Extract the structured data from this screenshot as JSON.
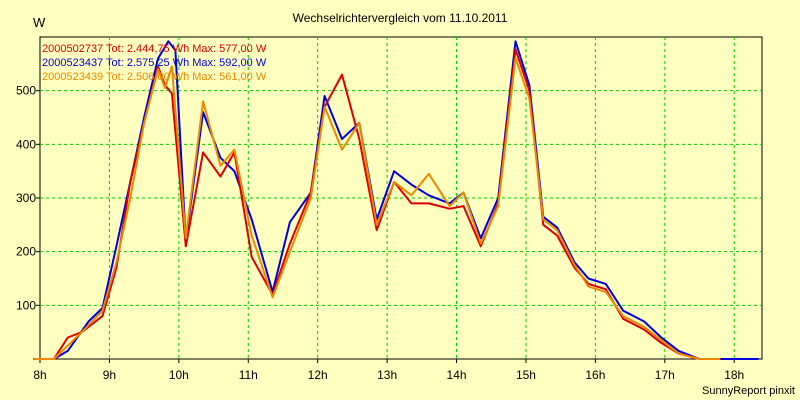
{
  "chart_data": {
    "type": "line",
    "title": "Wechselrichtervergleich vom 11.10.2011",
    "ylabel": "W",
    "xlabel": "",
    "xlim": [
      8,
      18.4
    ],
    "ylim": [
      0,
      600
    ],
    "grid": true,
    "legend_position": "top-left",
    "x_ticks": [
      {
        "value": 8,
        "label": "8h"
      },
      {
        "value": 9,
        "label": "9h"
      },
      {
        "value": 10,
        "label": "10h"
      },
      {
        "value": 11,
        "label": "11h"
      },
      {
        "value": 12,
        "label": "12h"
      },
      {
        "value": 13,
        "label": "13h"
      },
      {
        "value": 14,
        "label": "14h"
      },
      {
        "value": 15,
        "label": "15h"
      },
      {
        "value": 16,
        "label": "16h"
      },
      {
        "value": 17,
        "label": "17h"
      },
      {
        "value": 18,
        "label": "18h"
      }
    ],
    "y_ticks": [
      {
        "value": 100,
        "label": "100"
      },
      {
        "value": 200,
        "label": "200"
      },
      {
        "value": 300,
        "label": "300"
      },
      {
        "value": 400,
        "label": "400"
      },
      {
        "value": 500,
        "label": "500"
      }
    ],
    "credit": "SunnyReport pinxit",
    "series": [
      {
        "name": "2000502737",
        "legend": "2000502737 Tot: 2.444,75 Wh Max: 577,00 W",
        "color": "#dd0000",
        "points": [
          [
            7.9,
            0
          ],
          [
            8.2,
            0
          ],
          [
            8.4,
            40
          ],
          [
            8.6,
            50
          ],
          [
            8.9,
            80
          ],
          [
            9.1,
            170
          ],
          [
            9.3,
            330
          ],
          [
            9.5,
            440
          ],
          [
            9.7,
            545
          ],
          [
            9.8,
            510
          ],
          [
            9.9,
            495
          ],
          [
            10.1,
            210
          ],
          [
            10.35,
            385
          ],
          [
            10.6,
            340
          ],
          [
            10.8,
            385
          ],
          [
            11.05,
            190
          ],
          [
            11.35,
            120
          ],
          [
            11.6,
            215
          ],
          [
            11.9,
            310
          ],
          [
            12.1,
            470
          ],
          [
            12.35,
            530
          ],
          [
            12.6,
            410
          ],
          [
            12.85,
            240
          ],
          [
            13.1,
            330
          ],
          [
            13.35,
            290
          ],
          [
            13.6,
            290
          ],
          [
            13.9,
            280
          ],
          [
            14.1,
            285
          ],
          [
            14.35,
            210
          ],
          [
            14.6,
            290
          ],
          [
            14.85,
            577
          ],
          [
            15.05,
            500
          ],
          [
            15.25,
            250
          ],
          [
            15.45,
            230
          ],
          [
            15.7,
            170
          ],
          [
            15.9,
            140
          ],
          [
            16.15,
            130
          ],
          [
            16.4,
            75
          ],
          [
            16.7,
            55
          ],
          [
            16.95,
            30
          ],
          [
            17.2,
            10
          ],
          [
            17.5,
            0
          ],
          [
            17.8,
            0
          ]
        ]
      },
      {
        "name": "2000523437",
        "legend": "2000523437 Tot: 2.575,25 Wh Max: 592,00 W",
        "color": "#0000dd",
        "points": [
          [
            7.9,
            0
          ],
          [
            8.2,
            0
          ],
          [
            8.4,
            15
          ],
          [
            8.7,
            70
          ],
          [
            8.9,
            95
          ],
          [
            9.1,
            210
          ],
          [
            9.3,
            330
          ],
          [
            9.5,
            450
          ],
          [
            9.7,
            560
          ],
          [
            9.85,
            592
          ],
          [
            9.95,
            575
          ],
          [
            10.1,
            220
          ],
          [
            10.35,
            460
          ],
          [
            10.6,
            375
          ],
          [
            10.8,
            350
          ],
          [
            11.05,
            260
          ],
          [
            11.35,
            125
          ],
          [
            11.6,
            255
          ],
          [
            11.9,
            310
          ],
          [
            12.1,
            490
          ],
          [
            12.35,
            410
          ],
          [
            12.6,
            440
          ],
          [
            12.85,
            260
          ],
          [
            13.1,
            350
          ],
          [
            13.35,
            325
          ],
          [
            13.6,
            305
          ],
          [
            13.9,
            290
          ],
          [
            14.1,
            310
          ],
          [
            14.35,
            225
          ],
          [
            14.6,
            300
          ],
          [
            14.85,
            592
          ],
          [
            15.05,
            510
          ],
          [
            15.25,
            265
          ],
          [
            15.45,
            245
          ],
          [
            15.7,
            180
          ],
          [
            15.9,
            150
          ],
          [
            16.15,
            140
          ],
          [
            16.4,
            90
          ],
          [
            16.7,
            70
          ],
          [
            16.95,
            40
          ],
          [
            17.2,
            15
          ],
          [
            17.5,
            0
          ],
          [
            18.35,
            0
          ]
        ]
      },
      {
        "name": "2000523439",
        "legend": "2000523439 Tot: 2.506,00 Wh Max: 561,00 W",
        "color": "#ee8800",
        "points": [
          [
            7.9,
            0
          ],
          [
            8.2,
            0
          ],
          [
            8.4,
            25
          ],
          [
            8.6,
            50
          ],
          [
            8.9,
            90
          ],
          [
            9.1,
            180
          ],
          [
            9.3,
            300
          ],
          [
            9.5,
            440
          ],
          [
            9.7,
            540
          ],
          [
            9.8,
            505
          ],
          [
            9.9,
            545
          ],
          [
            10.1,
            225
          ],
          [
            10.35,
            480
          ],
          [
            10.6,
            360
          ],
          [
            10.8,
            390
          ],
          [
            11.05,
            230
          ],
          [
            11.35,
            115
          ],
          [
            11.6,
            200
          ],
          [
            11.9,
            300
          ],
          [
            12.1,
            470
          ],
          [
            12.35,
            390
          ],
          [
            12.6,
            440
          ],
          [
            12.85,
            250
          ],
          [
            13.1,
            330
          ],
          [
            13.35,
            305
          ],
          [
            13.6,
            345
          ],
          [
            13.9,
            285
          ],
          [
            14.1,
            310
          ],
          [
            14.35,
            215
          ],
          [
            14.6,
            285
          ],
          [
            14.85,
            561
          ],
          [
            15.05,
            485
          ],
          [
            15.25,
            260
          ],
          [
            15.45,
            240
          ],
          [
            15.7,
            175
          ],
          [
            15.9,
            135
          ],
          [
            16.15,
            125
          ],
          [
            16.4,
            80
          ],
          [
            16.7,
            60
          ],
          [
            16.95,
            35
          ],
          [
            17.2,
            10
          ],
          [
            17.5,
            0
          ],
          [
            17.8,
            0
          ]
        ]
      }
    ]
  }
}
